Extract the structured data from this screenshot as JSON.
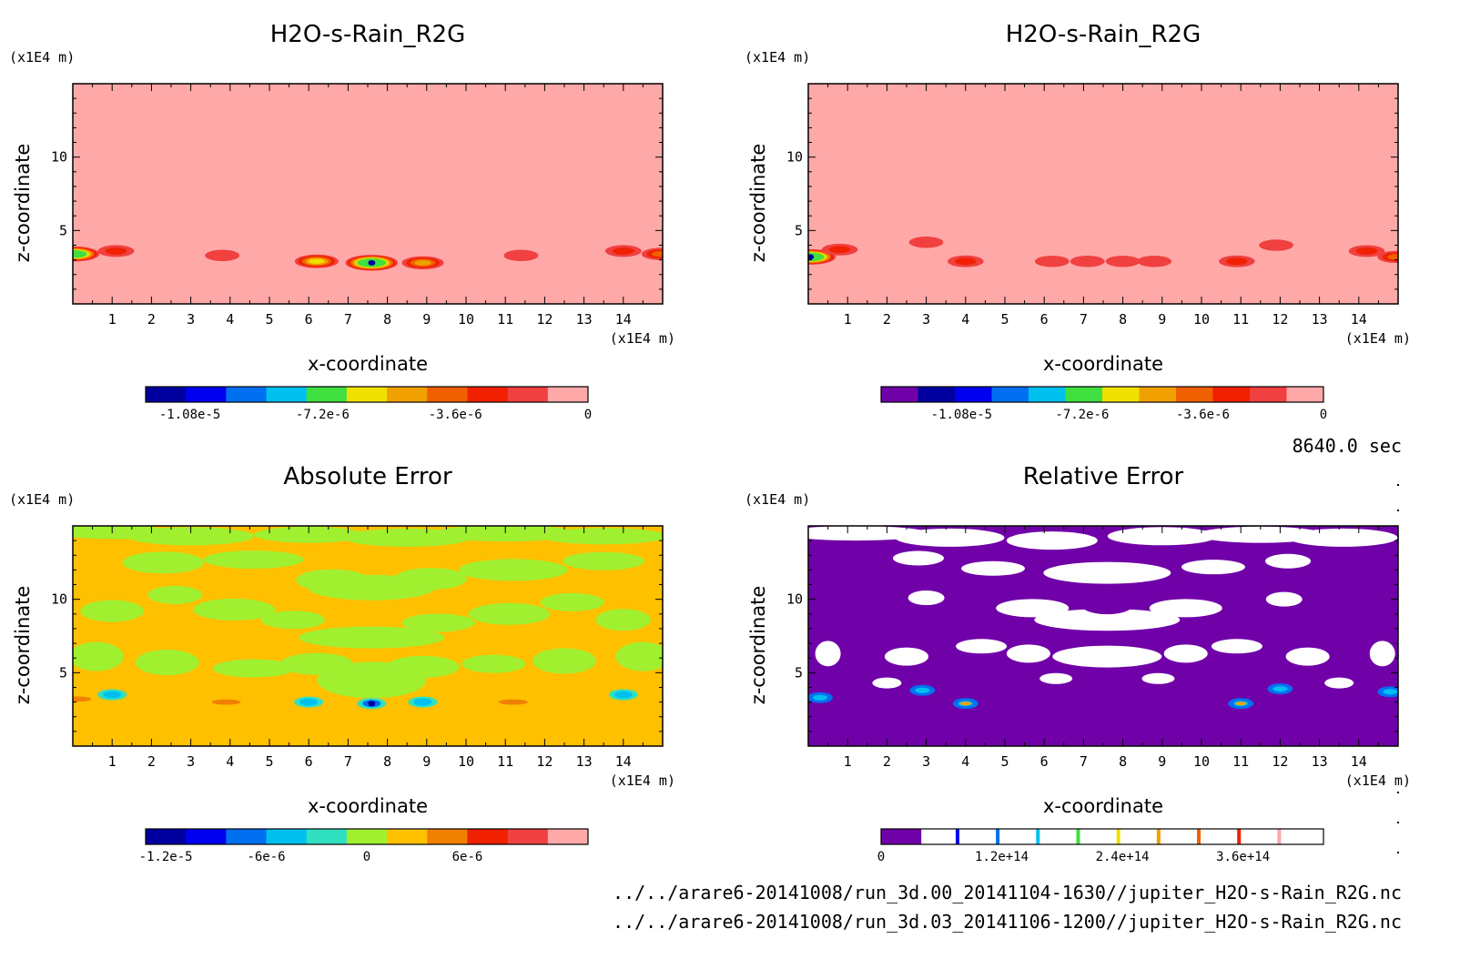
{
  "time_label": "8640.0 sec",
  "file_paths": [
    "../../arare6-20141008/run_3d.00_20141104-1630//jupiter_H2O-s-Rain_R2G.nc",
    "../../arare6-20141008/run_3d.03_20141106-1200//jupiter_H2O-s-Rain_R2G.nc"
  ],
  "chart_data": [
    {
      "type": "heatmap",
      "panel": "top-left",
      "title": "H2O-s-Rain_R2G",
      "xlabel": "x-coordinate",
      "ylabel": "z-coordinate",
      "x_unit": "(x1E4 m)",
      "y_unit": "(x1E4 m)",
      "xlim": [
        0,
        15
      ],
      "ylim": [
        0,
        15
      ],
      "x_ticks": [
        "1",
        "2",
        "3",
        "4",
        "5",
        "6",
        "7",
        "8",
        "9",
        "10",
        "11",
        "12",
        "13",
        "14"
      ],
      "y_ticks": [
        "5",
        "10"
      ],
      "background_color": "#ffa8a8",
      "colorbar": {
        "colors": [
          "#0000a0",
          "#0000f0",
          "#0070f0",
          "#00c0f0",
          "#40e040",
          "#f0e000",
          "#f0a000",
          "#f06000",
          "#f02000",
          "#f04040",
          "#ffa8a8"
        ],
        "tick_labels": [
          "-1.08e-5",
          "-7.2e-6",
          "-3.6e-6",
          "0"
        ],
        "tick_values": [
          -1.08e-05,
          -7.2e-06,
          -3.6e-06,
          0
        ],
        "range": [
          -1.2e-05,
          0
        ]
      },
      "features": [
        {
          "x": 0.05,
          "z": 3.4,
          "value": -9e-06
        },
        {
          "x": 1.1,
          "z": 3.6,
          "value": -2e-06
        },
        {
          "x": 3.8,
          "z": 3.3,
          "value": -1e-06
        },
        {
          "x": 6.2,
          "z": 2.9,
          "value": -6e-06
        },
        {
          "x": 7.6,
          "z": 2.8,
          "value": -1.08e-05
        },
        {
          "x": 8.9,
          "z": 2.8,
          "value": -5e-06
        },
        {
          "x": 11.4,
          "z": 3.3,
          "value": -1e-06
        },
        {
          "x": 14.0,
          "z": 3.6,
          "value": -2e-06
        },
        {
          "x": 14.95,
          "z": 3.4,
          "value": -3e-06
        }
      ]
    },
    {
      "type": "heatmap",
      "panel": "top-right",
      "title": "H2O-s-Rain_R2G",
      "xlabel": "x-coordinate",
      "ylabel": "z-coordinate",
      "x_unit": "(x1E4 m)",
      "y_unit": "(x1E4 m)",
      "xlim": [
        0,
        15
      ],
      "ylim": [
        0,
        15
      ],
      "x_ticks": [
        "1",
        "2",
        "3",
        "4",
        "5",
        "6",
        "7",
        "8",
        "9",
        "10",
        "11",
        "12",
        "13",
        "14"
      ],
      "y_ticks": [
        "5",
        "10"
      ],
      "background_color": "#ffa8a8",
      "colorbar": {
        "colors": [
          "#7000a8",
          "#0000a0",
          "#0000f0",
          "#0070f0",
          "#00c0f0",
          "#40e040",
          "#f0e000",
          "#f0a000",
          "#f06000",
          "#f02000",
          "#f04040",
          "#ffa8a8"
        ],
        "tick_labels": [
          "-1.08e-5",
          "-7.2e-6",
          "-3.6e-6",
          "0"
        ],
        "tick_values": [
          -1.08e-05,
          -7.2e-06,
          -3.6e-06,
          0
        ],
        "range": [
          -1.32e-05,
          0
        ]
      },
      "features": [
        {
          "x": 0.05,
          "z": 3.2,
          "value": -1.1e-05
        },
        {
          "x": 0.8,
          "z": 3.7,
          "value": -2e-06
        },
        {
          "x": 3.0,
          "z": 4.2,
          "value": -1e-06
        },
        {
          "x": 4.0,
          "z": 2.9,
          "value": -2e-06
        },
        {
          "x": 6.2,
          "z": 2.9,
          "value": -1e-06
        },
        {
          "x": 7.1,
          "z": 2.9,
          "value": -1e-06
        },
        {
          "x": 8.0,
          "z": 2.9,
          "value": -1e-06
        },
        {
          "x": 8.8,
          "z": 2.9,
          "value": -1e-06
        },
        {
          "x": 10.9,
          "z": 2.9,
          "value": -2e-06
        },
        {
          "x": 11.9,
          "z": 4.0,
          "value": -1e-06
        },
        {
          "x": 14.2,
          "z": 3.6,
          "value": -2e-06
        },
        {
          "x": 14.95,
          "z": 3.2,
          "value": -3e-06
        }
      ]
    },
    {
      "type": "heatmap",
      "panel": "bottom-left",
      "title": "Absolute Error",
      "xlabel": "x-coordinate",
      "ylabel": "z-coordinate",
      "x_unit": "(x1E4 m)",
      "y_unit": "(x1E4 m)",
      "xlim": [
        0,
        15
      ],
      "ylim": [
        0,
        15
      ],
      "x_ticks": [
        "1",
        "2",
        "3",
        "4",
        "5",
        "6",
        "7",
        "8",
        "9",
        "10",
        "11",
        "12",
        "13",
        "14"
      ],
      "y_ticks": [
        "5",
        "10"
      ],
      "background_color": "#ffc000",
      "colorbar": {
        "colors": [
          "#0000a0",
          "#0000f0",
          "#0070f0",
          "#00c0f0",
          "#30e0c0",
          "#a0f030",
          "#ffc000",
          "#f08000",
          "#f02000",
          "#f04040",
          "#ffa8a8"
        ],
        "tick_labels": [
          "-1.2e-5",
          "-6e-6",
          "0",
          "6e-6"
        ],
        "tick_values": [
          -1.2e-05,
          -6e-06,
          0,
          6e-06
        ],
        "range": [
          -1.32e-05,
          1.32e-05
        ]
      }
    },
    {
      "type": "heatmap",
      "panel": "bottom-right",
      "title": "Relative Error",
      "xlabel": "x-coordinate",
      "ylabel": "z-coordinate",
      "x_unit": "(x1E4 m)",
      "y_unit": "(x1E4 m)",
      "xlim": [
        0,
        15
      ],
      "ylim": [
        0,
        15
      ],
      "x_ticks": [
        "1",
        "2",
        "3",
        "4",
        "5",
        "6",
        "7",
        "8",
        "9",
        "10",
        "11",
        "12",
        "13",
        "14"
      ],
      "y_ticks": [
        "5",
        "10"
      ],
      "background_color": "#7000a8",
      "colorbar": {
        "colors": [
          "#7000a8",
          "#ffffff",
          "#ffffff",
          "#ffffff",
          "#ffffff",
          "#ffffff",
          "#ffffff",
          "#ffffff",
          "#ffffff",
          "#ffffff",
          "#ffffff"
        ],
        "line_colors": [
          "#0000f0",
          "#0070f0",
          "#00c0f0",
          "#40e040",
          "#f0e000",
          "#f0a000",
          "#f06000",
          "#f02000",
          "#ffa8a8"
        ],
        "tick_labels": [
          "0",
          "1.2e+14",
          "2.4e+14",
          "3.6e+14"
        ],
        "tick_values": [
          0,
          120000000000000.0,
          240000000000000.0,
          360000000000000.0
        ],
        "range": [
          0,
          440000000000000.0
        ]
      }
    }
  ]
}
